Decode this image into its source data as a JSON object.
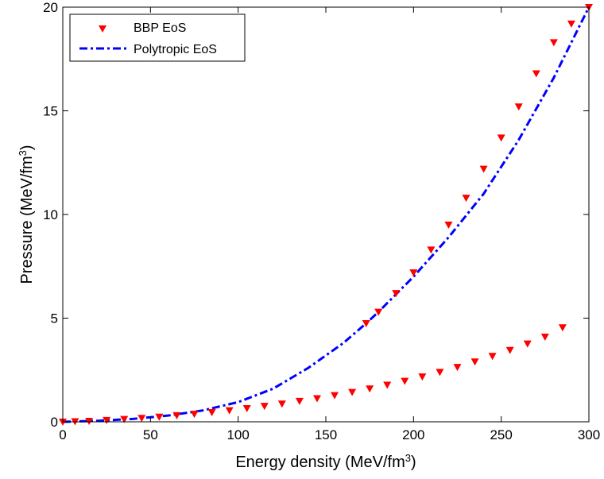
{
  "chart_data": {
    "type": "scatter",
    "title": "",
    "xlabel": "Energy density (MeV/fm",
    "xlabel_sup": "3",
    "xlabel_end": ")",
    "ylabel": "Pressure (MeV/fm",
    "ylabel_sup": "3",
    "ylabel_end": ")",
    "xlim": [
      0,
      300
    ],
    "ylim": [
      0,
      20
    ],
    "xticks": [
      0,
      50,
      100,
      150,
      200,
      250,
      300
    ],
    "yticks": [
      0,
      5,
      10,
      15,
      20
    ],
    "grid": false,
    "legend_position": "top-left",
    "series": [
      {
        "name": "BBP EoS",
        "marker": "down-triangle",
        "color": "#ff0000",
        "x": [
          0,
          7,
          15,
          25,
          35,
          45,
          55,
          65,
          75,
          85,
          95,
          105,
          115,
          125,
          135,
          145,
          155,
          165,
          175,
          185,
          195,
          205,
          215,
          225,
          235,
          245,
          255,
          265,
          275,
          285,
          173,
          180,
          190,
          200,
          210,
          220,
          230,
          240,
          250,
          260,
          270,
          280,
          290,
          300
        ],
        "y": [
          0,
          0.02,
          0.04,
          0.08,
          0.13,
          0.18,
          0.24,
          0.31,
          0.38,
          0.46,
          0.55,
          0.65,
          0.76,
          0.87,
          1.0,
          1.13,
          1.28,
          1.43,
          1.6,
          1.78,
          1.97,
          2.18,
          2.4,
          2.64,
          2.9,
          3.17,
          3.46,
          3.77,
          4.1,
          4.55,
          4.75,
          5.3,
          6.2,
          7.2,
          8.3,
          9.5,
          10.8,
          12.2,
          13.7,
          15.2,
          16.8,
          18.3,
          19.2,
          20.0
        ]
      },
      {
        "name": "Polytropic EoS",
        "line_style": "dash-dot",
        "color": "#0000ff",
        "x": [
          0,
          20,
          40,
          60,
          80,
          100,
          120,
          140,
          160,
          173,
          180,
          200,
          220,
          240,
          260,
          280,
          300
        ],
        "y": [
          0,
          0.05,
          0.14,
          0.3,
          0.55,
          0.95,
          1.6,
          2.6,
          3.8,
          4.75,
          5.3,
          7.0,
          8.9,
          11.0,
          13.6,
          16.6,
          20.0
        ]
      }
    ]
  }
}
